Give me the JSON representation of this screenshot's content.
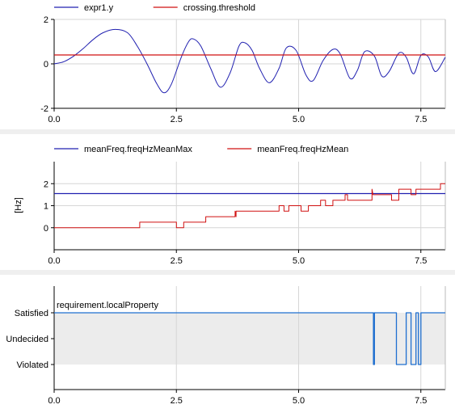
{
  "colors": {
    "blue": "#2020b0",
    "red": "#d01010",
    "req_blue": "#1f6fd0",
    "grid": "#d6d6d6",
    "band": "#ececec"
  },
  "panels": [
    {
      "legend": [
        {
          "label": "expr1.y",
          "color": "#2020b0"
        },
        {
          "label": "crossing.threshold",
          "color": "#d01010"
        }
      ],
      "ylabel": "",
      "yticks": [
        "-2",
        "0",
        "2"
      ],
      "xticks": [
        "0.0",
        "2.5",
        "5.0",
        "7.5"
      ]
    },
    {
      "legend": [
        {
          "label": "meanFreq.freqHzMeanMax",
          "color": "#2020b0"
        },
        {
          "label": "meanFreq.freqHzMean",
          "color": "#d01010"
        }
      ],
      "ylabel": "[Hz]",
      "yticks": [
        "0",
        "1",
        "2"
      ],
      "xticks": [
        "0.0",
        "2.5",
        "5.0",
        "7.5"
      ]
    },
    {
      "series_label": "requirement.localProperty",
      "yticks": [
        "Satisfied",
        "Undecided",
        "Violated"
      ],
      "xticks": [
        "0.0",
        "2.5",
        "5.0",
        "7.5"
      ]
    }
  ],
  "chart_data": [
    {
      "type": "line",
      "xlim": [
        0,
        8
      ],
      "ylim": [
        -2,
        2
      ],
      "grid": true,
      "legend_position": "top-left",
      "series": [
        {
          "name": "expr1.y",
          "x": [
            0,
            0.2,
            0.4,
            0.6,
            0.8,
            1.0,
            1.25,
            1.5,
            1.7,
            1.9,
            2.1,
            2.25,
            2.4,
            2.6,
            2.75,
            2.85,
            3.0,
            3.2,
            3.4,
            3.6,
            3.78,
            3.9,
            4.05,
            4.2,
            4.4,
            4.6,
            4.75,
            4.95,
            5.15,
            5.3,
            5.5,
            5.7,
            5.85,
            6.05,
            6.2,
            6.35,
            6.55,
            6.7,
            6.85,
            7.05,
            7.2,
            7.35,
            7.5,
            7.65,
            7.8,
            8.0
          ],
          "y": [
            0.0,
            0.1,
            0.35,
            0.7,
            1.1,
            1.4,
            1.55,
            1.4,
            0.8,
            0.0,
            -0.9,
            -1.3,
            -0.9,
            0.3,
            1.0,
            1.12,
            0.8,
            -0.2,
            -1.05,
            -0.4,
            0.8,
            0.95,
            0.6,
            -0.2,
            -0.85,
            -0.2,
            0.72,
            0.6,
            -0.5,
            -0.75,
            0.15,
            0.65,
            0.45,
            -0.65,
            -0.3,
            0.55,
            0.35,
            -0.55,
            -0.35,
            0.48,
            0.3,
            -0.45,
            0.38,
            0.32,
            -0.35,
            0.3
          ]
        },
        {
          "name": "crossing.threshold",
          "x": [
            0,
            8
          ],
          "y": [
            0.4,
            0.4
          ]
        }
      ]
    },
    {
      "type": "line",
      "xlim": [
        0,
        8
      ],
      "ylim": [
        -1,
        3
      ],
      "ylabel": "[Hz]",
      "grid": true,
      "legend_position": "top-left",
      "series": [
        {
          "name": "meanFreq.freqHzMeanMax",
          "x": [
            0,
            8
          ],
          "y": [
            1.55,
            1.55
          ]
        },
        {
          "name": "meanFreq.freqHzMean",
          "x": [
            0,
            1.75,
            1.75,
            2.5,
            2.5,
            2.65,
            2.65,
            3.1,
            3.1,
            3.7,
            3.7,
            3.72,
            3.72,
            4.0,
            4.0,
            4.6,
            4.6,
            4.7,
            4.7,
            4.8,
            4.8,
            5.05,
            5.05,
            5.2,
            5.2,
            5.45,
            5.45,
            5.55,
            5.55,
            5.7,
            5.7,
            5.95,
            5.95,
            6.0,
            6.0,
            6.5,
            6.5,
            6.52,
            6.52,
            6.9,
            6.9,
            7.05,
            7.05,
            7.3,
            7.3,
            7.4,
            7.4,
            7.8,
            7.8,
            7.9,
            7.9,
            8.0
          ],
          "y": [
            0,
            0,
            0.25,
            0.25,
            0,
            0,
            0.25,
            0.25,
            0.5,
            0.5,
            0.75,
            0.5,
            0.75,
            0.75,
            0.75,
            0.75,
            1.0,
            1.0,
            0.75,
            0.75,
            1.0,
            1.0,
            0.75,
            0.75,
            1.0,
            1.0,
            1.25,
            1.25,
            1.0,
            1.0,
            1.25,
            1.25,
            1.5,
            1.5,
            1.25,
            1.25,
            1.75,
            1.5,
            1.5,
            1.5,
            1.25,
            1.25,
            1.75,
            1.75,
            1.5,
            1.5,
            1.75,
            1.75,
            1.75,
            1.75,
            2.0,
            2.0
          ]
        }
      ]
    },
    {
      "type": "line",
      "xlim": [
        0,
        8
      ],
      "y_categories": [
        "Violated",
        "Undecided",
        "Satisfied"
      ],
      "grid": true,
      "series": [
        {
          "name": "requirement.localProperty",
          "x": [
            0,
            6.53,
            6.53,
            6.55,
            6.55,
            7.0,
            7.0,
            7.2,
            7.2,
            7.3,
            7.3,
            7.4,
            7.4,
            7.45,
            7.45,
            7.5,
            7.5,
            8.0
          ],
          "y": [
            2,
            2,
            0,
            0,
            2,
            2,
            0,
            0,
            2,
            2,
            0,
            0,
            2,
            2,
            0,
            0,
            2,
            2
          ]
        }
      ]
    }
  ]
}
